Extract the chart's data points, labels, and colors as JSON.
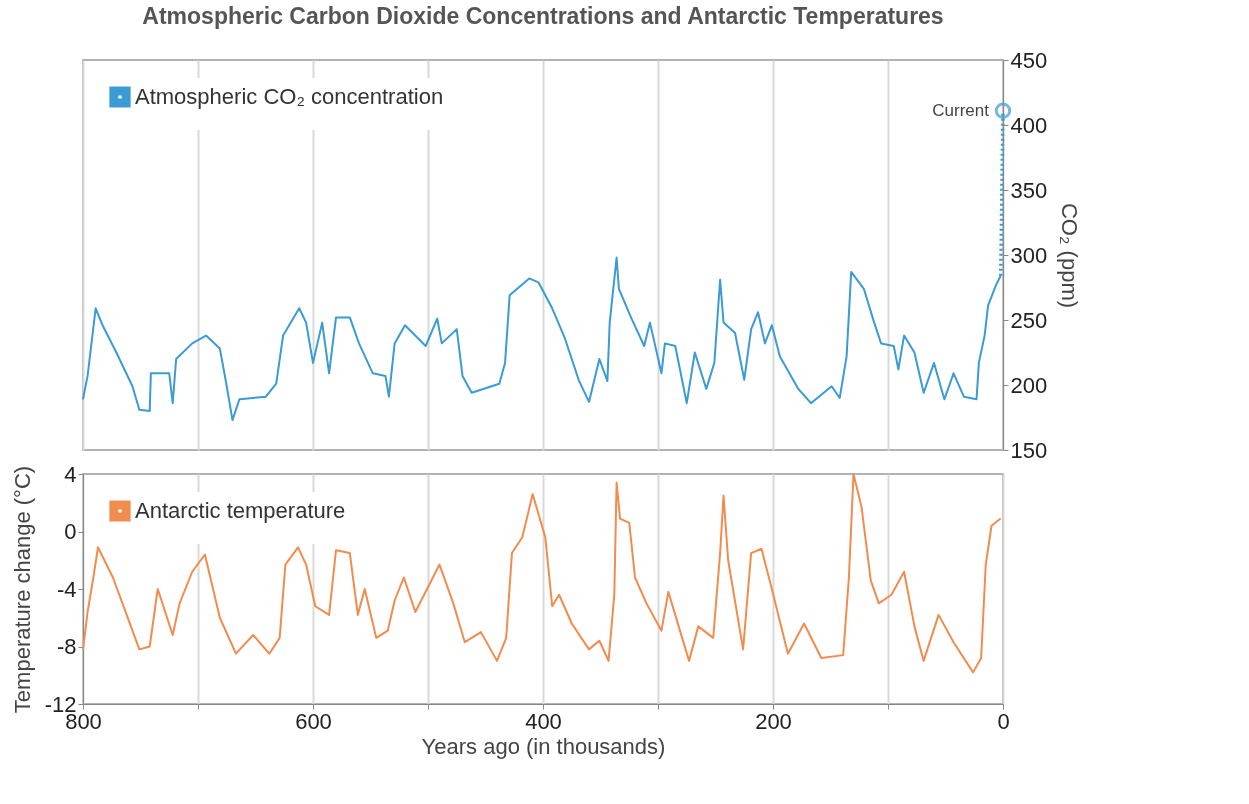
{
  "chart_data": [
    {
      "type": "line",
      "title": "Atmospheric Carbon Dioxide Concentrations and Antarctic Temperatures",
      "y2label": "CO₂ (ppm)",
      "xlim": [
        800,
        0
      ],
      "xticks": [
        {
          "value": 800,
          "label": null
        },
        {
          "value": 700,
          "label": null
        },
        {
          "value": 600,
          "label": null
        },
        {
          "value": 500,
          "label": null
        },
        {
          "value": 400,
          "label": null
        },
        {
          "value": 300,
          "label": null
        },
        {
          "value": 200,
          "label": null
        },
        {
          "value": 100,
          "label": null
        },
        {
          "value": 0,
          "label": null
        }
      ],
      "y2lim": [
        150,
        450
      ],
      "y2ticks": [
        150,
        200,
        250,
        300,
        350,
        400,
        450
      ],
      "grid": "x",
      "legend": "top left",
      "tick_labels": "y",
      "series": [
        {
          "name": "Atmospheric CO₂ concentration",
          "color": "#3a9bd5",
          "axis": "y2",
          "line_style": "solid",
          "x": [
            800,
            796,
            789,
            783,
            771,
            757,
            751,
            742,
            741,
            725,
            722,
            719,
            705,
            693,
            681,
            676,
            670,
            664,
            641,
            632,
            626,
            612,
            606,
            600,
            592,
            586,
            580,
            568,
            560,
            548,
            537,
            534,
            529,
            520,
            502,
            492,
            488,
            475,
            470,
            462,
            438,
            433,
            429,
            412,
            404,
            392,
            381,
            369,
            360,
            351,
            344,
            342,
            336,
            334,
            323,
            312,
            307,
            297,
            294,
            285,
            275,
            268,
            258,
            251,
            246,
            243,
            233,
            225,
            219,
            213,
            207,
            201,
            194,
            178,
            167,
            149,
            142,
            136,
            132,
            121,
            112,
            106,
            95,
            91,
            86,
            77,
            69,
            60,
            51,
            43,
            34,
            23,
            21,
            16,
            13,
            6,
            2
          ],
          "values": [
            189,
            207,
            259,
            246,
            225,
            199,
            181,
            180,
            209,
            209,
            186,
            220,
            232,
            238,
            228,
            204,
            173,
            189,
            191,
            201,
            238,
            259,
            248,
            217,
            248,
            209,
            252,
            252,
            232,
            209,
            207,
            191,
            232,
            246,
            230,
            251,
            232,
            243,
            207,
            194,
            201,
            217,
            269,
            282,
            279,
            259,
            236,
            204,
            187,
            220,
            203,
            248,
            298,
            274,
            251,
            230,
            248,
            209,
            232,
            230,
            186,
            225,
            197,
            217,
            281,
            248,
            240,
            204,
            243,
            256,
            232,
            246,
            222,
            197,
            186,
            199,
            190,
            222,
            287,
            274,
            248,
            232,
            230,
            212,
            238,
            225,
            194,
            217,
            189,
            209,
            191,
            189,
            217,
            238,
            261,
            277,
            284
          ]
        },
        {
          "color": "#3a9bd5",
          "axis": "y2",
          "line_style": "dotted",
          "x": [
            2,
            0
          ],
          "values": [
            284,
            411
          ]
        }
      ],
      "annotations": [
        "Current"
      ]
    },
    {
      "type": "line",
      "xlabel": "Years ago (in thousands)",
      "ylabel": "Temperature change (°C)",
      "xlim": [
        800,
        0
      ],
      "xticks": [
        800,
        {
          "value": 700,
          "label": null
        },
        600,
        {
          "value": 500,
          "label": null
        },
        400,
        {
          "value": 300,
          "label": null
        },
        200,
        {
          "value": 100,
          "label": null
        },
        0
      ],
      "ylim": [
        -12,
        4
      ],
      "yticks": [
        -12,
        -8,
        -4,
        0,
        4
      ],
      "grid": "x",
      "legend": "top left",
      "series": [
        {
          "name": "Antarctic temperature",
          "color": "#f28c4e",
          "line_style": "solid",
          "x": [
            800,
            796,
            791,
            787,
            774,
            762,
            751,
            742,
            735,
            722,
            716,
            705,
            694,
            681,
            667,
            652,
            638,
            629,
            624,
            613,
            606,
            598,
            586,
            580,
            568,
            561,
            555,
            545,
            535,
            529,
            521,
            511,
            490,
            478,
            468,
            454,
            440,
            432,
            427,
            418,
            409,
            398,
            392,
            386,
            375,
            360,
            351,
            343,
            338,
            336,
            333,
            325,
            320,
            310,
            297,
            291,
            282,
            273,
            265,
            252,
            246,
            243,
            239,
            226,
            219,
            210,
            201,
            187,
            173,
            158,
            139,
            134,
            130,
            123,
            115,
            108,
            97,
            86,
            77,
            69,
            56,
            43,
            26,
            19,
            15,
            10,
            2
          ],
          "values": [
            -8.2,
            -5.6,
            -3.2,
            -1.1,
            -3.2,
            -5.8,
            -8.2,
            -8.0,
            -4.0,
            -7.2,
            -5.0,
            -2.8,
            -1.6,
            -6.0,
            -8.5,
            -7.2,
            -8.5,
            -7.4,
            -2.3,
            -1.1,
            -2.3,
            -5.2,
            -5.8,
            -1.3,
            -1.5,
            -5.8,
            -4.0,
            -7.4,
            -6.9,
            -4.8,
            -3.2,
            -5.6,
            -2.3,
            -5.0,
            -7.7,
            -7.0,
            -9.0,
            -7.4,
            -1.5,
            -0.4,
            2.6,
            -0.4,
            -5.2,
            -4.4,
            -6.4,
            -8.2,
            -7.6,
            -9.0,
            -4.4,
            3.4,
            0.9,
            0.6,
            -3.2,
            -5.0,
            -6.9,
            -4.2,
            -6.6,
            -9.0,
            -6.6,
            -7.4,
            -1.5,
            2.5,
            -2.0,
            -8.2,
            -1.5,
            -1.2,
            -4.0,
            -8.5,
            -6.4,
            -8.8,
            -8.6,
            -3.2,
            4.0,
            1.7,
            -3.4,
            -5.0,
            -4.4,
            -2.8,
            -6.6,
            -9.0,
            -5.8,
            -7.7,
            -9.8,
            -8.8,
            -2.3,
            0.4,
            0.9
          ]
        }
      ]
    }
  ]
}
